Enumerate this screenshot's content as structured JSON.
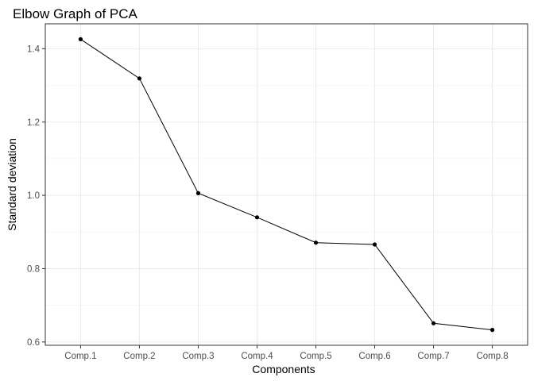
{
  "chart_data": {
    "type": "line",
    "title": "Elbow Graph of PCA",
    "xlabel": "Components",
    "ylabel": "Standard deviation",
    "categories": [
      "Comp.1",
      "Comp.2",
      "Comp.3",
      "Comp.4",
      "Comp.5",
      "Comp.6",
      "Comp.7",
      "Comp.8"
    ],
    "values": [
      1.426,
      1.319,
      1.006,
      0.94,
      0.871,
      0.866,
      0.651,
      0.633
    ],
    "ylim": [
      0.591,
      1.468
    ],
    "yticks": [
      "0.6",
      "0.8",
      "1.0",
      "1.2",
      "1.4"
    ],
    "grid": true,
    "legend": "none",
    "colors": {
      "line": "#000000",
      "point": "#000000",
      "grid": "#ebebeb",
      "border": "#333333"
    }
  }
}
